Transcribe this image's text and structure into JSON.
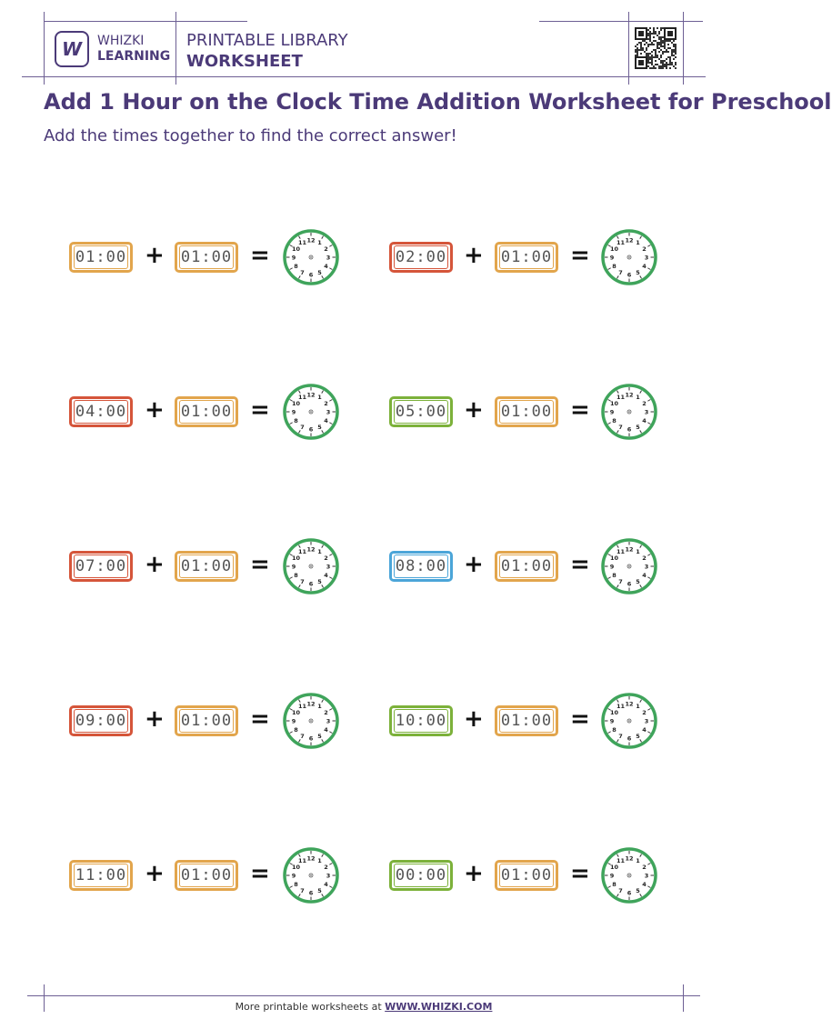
{
  "header": {
    "brand_line1": "WHIZKI",
    "brand_line2": "LEARNING",
    "logo_letter": "W",
    "library_line1": "PRINTABLE LIBRARY",
    "library_line2": "WORKSHEET"
  },
  "title": "Add 1 Hour on the Clock Time Addition Worksheet for Preschool",
  "subtitle": "Add the times together to find the correct answer!",
  "colors": {
    "orange": "#E2A54C",
    "red": "#D5553A",
    "green": "#7CB13A",
    "blue": "#4BA5D8",
    "clock": "#3FA45B",
    "brand": "#4b3a78"
  },
  "operators": {
    "plus": "+",
    "equals": "="
  },
  "problems": [
    {
      "time1": "01:00",
      "color1": "orange",
      "time2": "01:00",
      "color2": "orange"
    },
    {
      "time1": "02:00",
      "color1": "red",
      "time2": "01:00",
      "color2": "orange"
    },
    {
      "time1": "04:00",
      "color1": "red",
      "time2": "01:00",
      "color2": "orange"
    },
    {
      "time1": "05:00",
      "color1": "green",
      "time2": "01:00",
      "color2": "orange"
    },
    {
      "time1": "07:00",
      "color1": "red",
      "time2": "01:00",
      "color2": "orange"
    },
    {
      "time1": "08:00",
      "color1": "blue",
      "time2": "01:00",
      "color2": "orange"
    },
    {
      "time1": "09:00",
      "color1": "red",
      "time2": "01:00",
      "color2": "orange"
    },
    {
      "time1": "10:00",
      "color1": "green",
      "time2": "01:00",
      "color2": "orange"
    },
    {
      "time1": "11:00",
      "color1": "orange",
      "time2": "01:00",
      "color2": "orange"
    },
    {
      "time1": "00:00",
      "color1": "green",
      "time2": "01:00",
      "color2": "orange"
    }
  ],
  "clock_numbers": [
    "12",
    "1",
    "2",
    "3",
    "4",
    "5",
    "6",
    "7",
    "8",
    "9",
    "10",
    "11"
  ],
  "footer": {
    "text": "More printable worksheets at ",
    "link": "WWW.WHIZKI.COM"
  }
}
